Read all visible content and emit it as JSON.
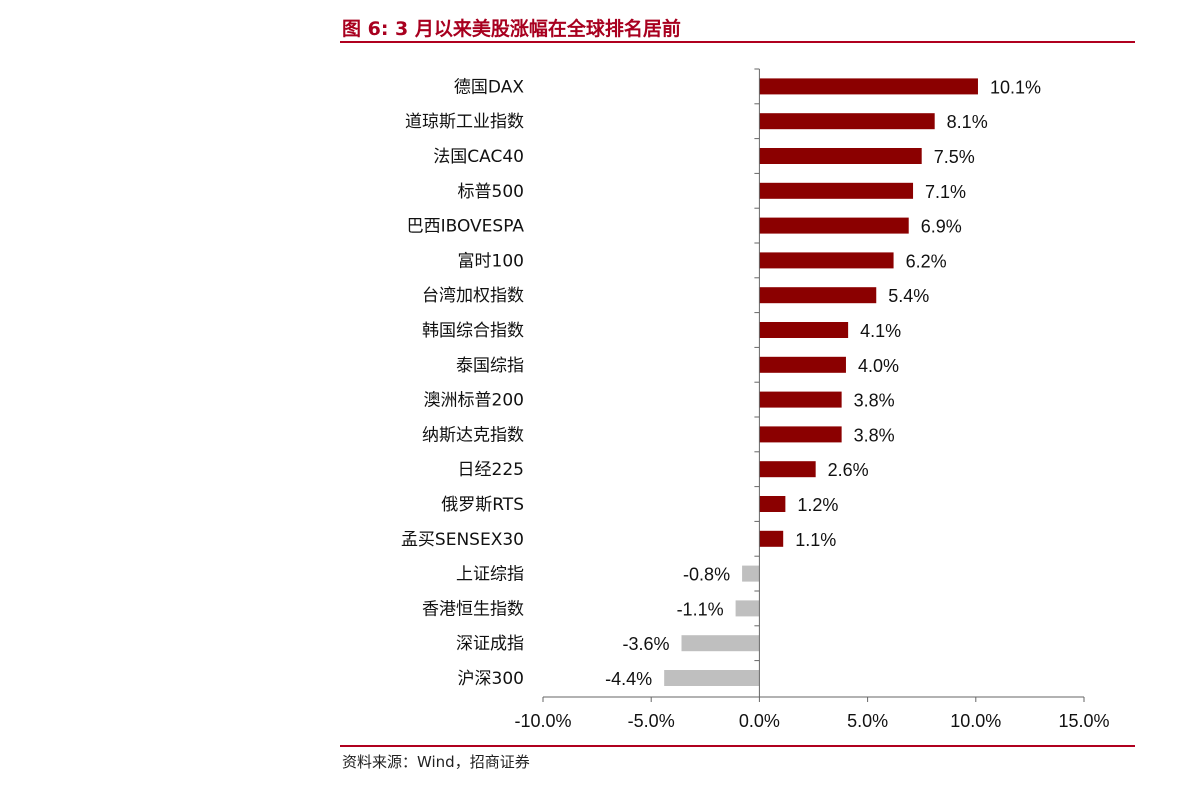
{
  "title": "图 6:  3 月以来美股涨幅在全球排名居前",
  "source": "资料来源：Wind，招商证券",
  "colors": {
    "accent": "#a8001f",
    "positive": "#8b0000",
    "negative": "#bfbfbf"
  },
  "chart_data": {
    "type": "bar",
    "orientation": "horizontal",
    "categories": [
      "德国DAX",
      "道琼斯工业指数",
      "法国CAC40",
      "标普500",
      "巴西IBOVESPA",
      "富时100",
      "台湾加权指数",
      "韩国综合指数",
      "泰国综指",
      "澳洲标普200",
      "纳斯达克指数",
      "日经225",
      "俄罗斯RTS",
      "孟买SENSEX30",
      "上证综指",
      "香港恒生指数",
      "深证成指",
      "沪深300"
    ],
    "values": [
      10.1,
      8.1,
      7.5,
      7.1,
      6.9,
      6.2,
      5.4,
      4.1,
      4.0,
      3.8,
      3.8,
      2.6,
      1.2,
      1.1,
      -0.8,
      -1.1,
      -3.6,
      -4.4
    ],
    "value_labels": [
      "10.1%",
      "8.1%",
      "7.5%",
      "7.1%",
      "6.9%",
      "6.2%",
      "5.4%",
      "4.1%",
      "4.0%",
      "3.8%",
      "3.8%",
      "2.6%",
      "1.2%",
      "1.1%",
      "-0.8%",
      "-1.1%",
      "-3.6%",
      "-4.4%"
    ],
    "xlim": [
      -10,
      15
    ],
    "xticks": [
      -10,
      -5,
      0,
      5,
      10,
      15
    ],
    "xtick_labels": [
      "-10.0%",
      "-5.0%",
      "0.0%",
      "5.0%",
      "10.0%",
      "15.0%"
    ],
    "grid": false,
    "legend": "none"
  }
}
